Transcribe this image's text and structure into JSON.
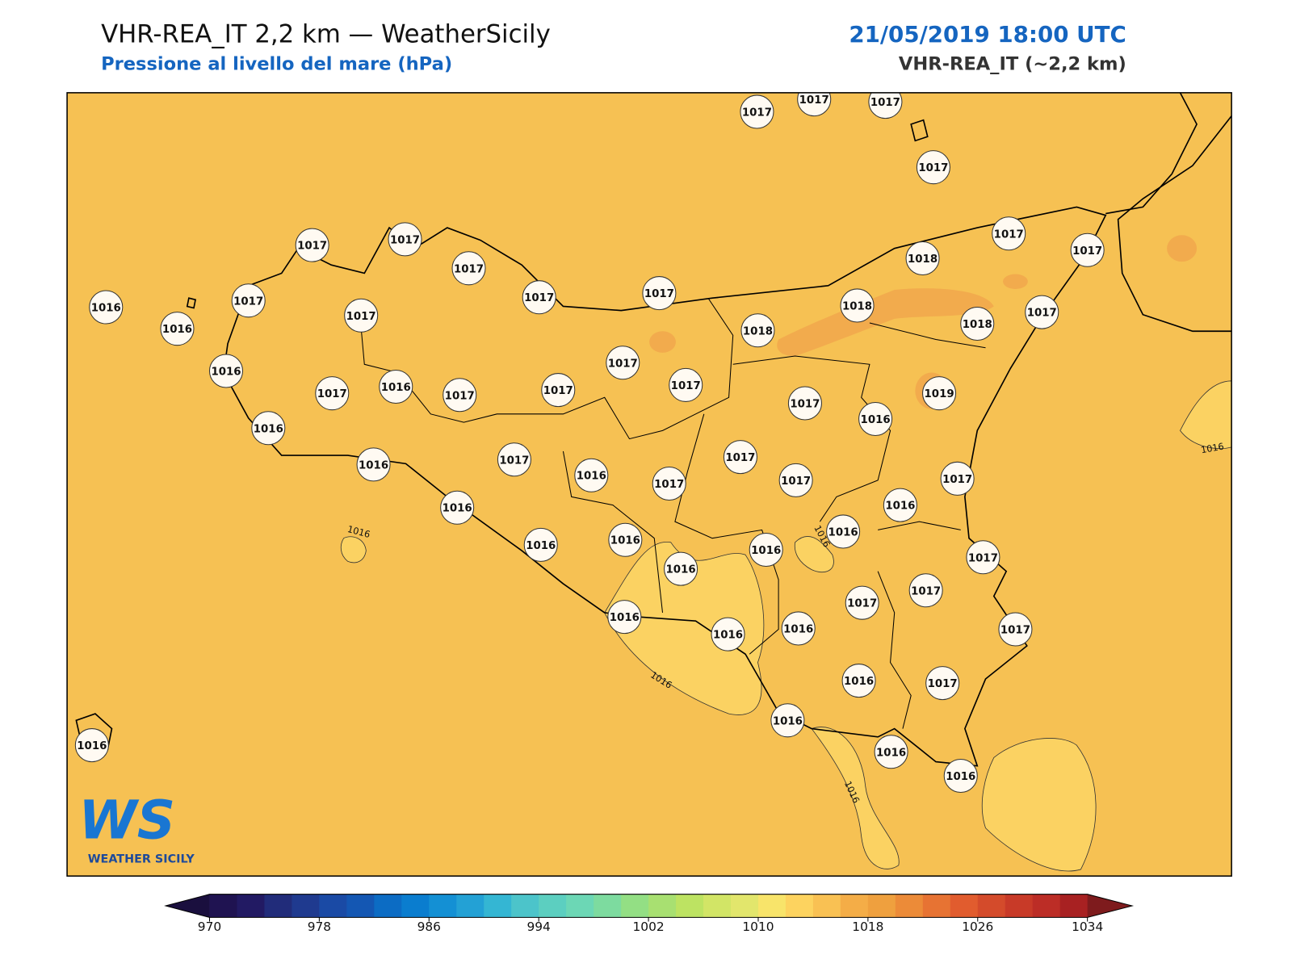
{
  "header": {
    "title": "VHR-REA_IT 2,2 km — WeatherSicily",
    "subtitle": "Pressione al livello del mare (hPa)",
    "datetime": "21/05/2019 18:00 UTC",
    "model": "VHR-REA_IT (~2,2 km)"
  },
  "stations": [
    1017,
    1017,
    1017,
    1017,
    1017,
    1017,
    1018,
    1017,
    1017,
    1017,
    1017,
    1017,
    1018,
    1016,
    1017,
    1017,
    1016,
    1018,
    1018,
    1017,
    1016,
    1017,
    1017,
    1016,
    1017,
    1017,
    1017,
    1017,
    1019,
    1016,
    1016,
    1016,
    1017,
    1016,
    1017,
    1017,
    1017,
    1017,
    1016,
    1016,
    1016,
    1016,
    1016,
    1016,
    1016,
    1017,
    1017,
    1017,
    1016,
    1016,
    1016,
    1017,
    1016,
    1017,
    1016,
    1016,
    1016,
    1016
  ],
  "contour_labels": [
    1016,
    1016,
    1016,
    1016,
    1016
  ],
  "colorbar": {
    "lim": [
      970,
      1034
    ],
    "ticks": [
      970,
      978,
      986,
      994,
      1002,
      1010,
      1018,
      1026,
      1034
    ],
    "colors": [
      "#1f1351",
      "#221a63",
      "#212c7a",
      "#1f3a8f",
      "#1a4aa5",
      "#1457b3",
      "#0c6cc4",
      "#0a7dcf",
      "#1490d4",
      "#23a1d5",
      "#34b6d3",
      "#4cc4ca",
      "#5ccfc0",
      "#6cd7b5",
      "#7ddb9f",
      "#93df84",
      "#a8e071",
      "#bde362",
      "#d2e566",
      "#e2e66c",
      "#f8e46a",
      "#fdd35f",
      "#f9c153",
      "#f4ad47",
      "#efa03e",
      "#ec8b38",
      "#e77333",
      "#e15c2e",
      "#d44b2b",
      "#c83a28",
      "#bc2d26",
      "#a82122"
    ],
    "under_color": "#1a0f3e",
    "over_color": "#7e1b1d"
  },
  "logo": {
    "mark": "WS",
    "text": "WEATHER SICILY"
  }
}
